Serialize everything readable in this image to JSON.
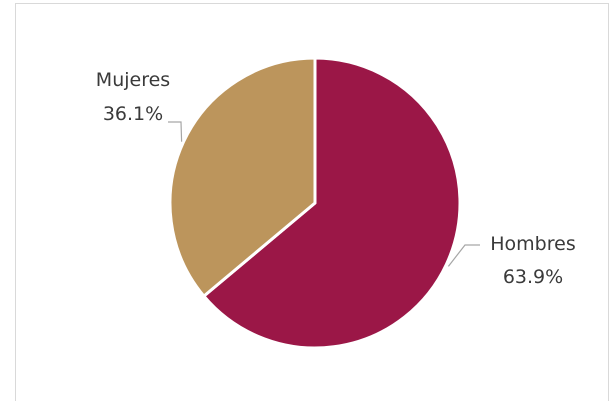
{
  "chart_data": {
    "type": "pie",
    "title": "",
    "series": [
      {
        "slices": [
          {
            "label": "Hombres",
            "value": 63.9,
            "display": "63.9%",
            "color": "#9b1747"
          },
          {
            "label": "Mujeres",
            "value": 36.1,
            "display": "36.1%",
            "color": "#bc955c"
          }
        ]
      }
    ],
    "legend": "none",
    "start_angle": "12 o'clock, clockwise",
    "slice_border_color": "#ffffff",
    "leader_line_color": "#a6a6a6"
  }
}
